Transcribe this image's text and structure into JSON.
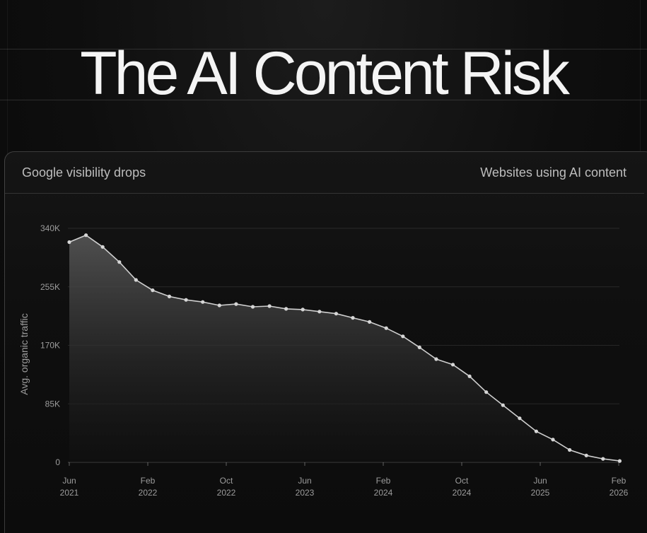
{
  "page": {
    "headline": "The AI Content Risk"
  },
  "card": {
    "left_label": "Google visibility drops",
    "right_label": "Websites using AI content"
  },
  "chart_data": {
    "type": "area",
    "title": "",
    "xlabel": "",
    "ylabel": "Avg. organic traffic",
    "ylim": [
      0,
      340000
    ],
    "y_ticks": [
      {
        "value": 0,
        "label": "0"
      },
      {
        "value": 85000,
        "label": "85K"
      },
      {
        "value": 170000,
        "label": "170K"
      },
      {
        "value": 255000,
        "label": "255K"
      },
      {
        "value": 340000,
        "label": "340K"
      }
    ],
    "x_ticks": [
      {
        "month": 0,
        "line1": "Jun",
        "line2": "2021"
      },
      {
        "month": 8,
        "line1": "Feb",
        "line2": "2022"
      },
      {
        "month": 16,
        "line1": "Oct",
        "line2": "2022"
      },
      {
        "month": 24,
        "line1": "Jun",
        "line2": "2023"
      },
      {
        "month": 32,
        "line1": "Feb",
        "line2": "2024"
      },
      {
        "month": 40,
        "line1": "Oct",
        "line2": "2024"
      },
      {
        "month": 48,
        "line1": "Jun",
        "line2": "2025"
      },
      {
        "month": 56,
        "line1": "Feb",
        "line2": "2026"
      }
    ],
    "grid": true,
    "line_color": "#cfcfcf",
    "point_color": "#d6d6d6",
    "points": [
      {
        "month": 0,
        "value": 320000
      },
      {
        "month": 1.7,
        "value": 330000
      },
      {
        "month": 3.4,
        "value": 313000
      },
      {
        "month": 5.1,
        "value": 291000
      },
      {
        "month": 6.8,
        "value": 265000
      },
      {
        "month": 8.5,
        "value": 250000
      },
      {
        "month": 10.2,
        "value": 241000
      },
      {
        "month": 11.9,
        "value": 236000
      },
      {
        "month": 13.6,
        "value": 233000
      },
      {
        "month": 15.3,
        "value": 228000
      },
      {
        "month": 17.0,
        "value": 230000
      },
      {
        "month": 18.7,
        "value": 226000
      },
      {
        "month": 20.4,
        "value": 227000
      },
      {
        "month": 22.1,
        "value": 223000
      },
      {
        "month": 23.8,
        "value": 222000
      },
      {
        "month": 25.5,
        "value": 219000
      },
      {
        "month": 27.2,
        "value": 216000
      },
      {
        "month": 28.9,
        "value": 210000
      },
      {
        "month": 30.6,
        "value": 204000
      },
      {
        "month": 32.3,
        "value": 195000
      },
      {
        "month": 34.0,
        "value": 183000
      },
      {
        "month": 35.7,
        "value": 167000
      },
      {
        "month": 37.4,
        "value": 150000
      },
      {
        "month": 39.1,
        "value": 142000
      },
      {
        "month": 40.8,
        "value": 125000
      },
      {
        "month": 42.5,
        "value": 102000
      },
      {
        "month": 44.2,
        "value": 83000
      },
      {
        "month": 45.9,
        "value": 64000
      },
      {
        "month": 47.6,
        "value": 45000
      },
      {
        "month": 49.3,
        "value": 33000
      },
      {
        "month": 51.0,
        "value": 18000
      },
      {
        "month": 52.7,
        "value": 10000
      },
      {
        "month": 54.4,
        "value": 5000
      },
      {
        "month": 56.1,
        "value": 2000
      }
    ]
  }
}
